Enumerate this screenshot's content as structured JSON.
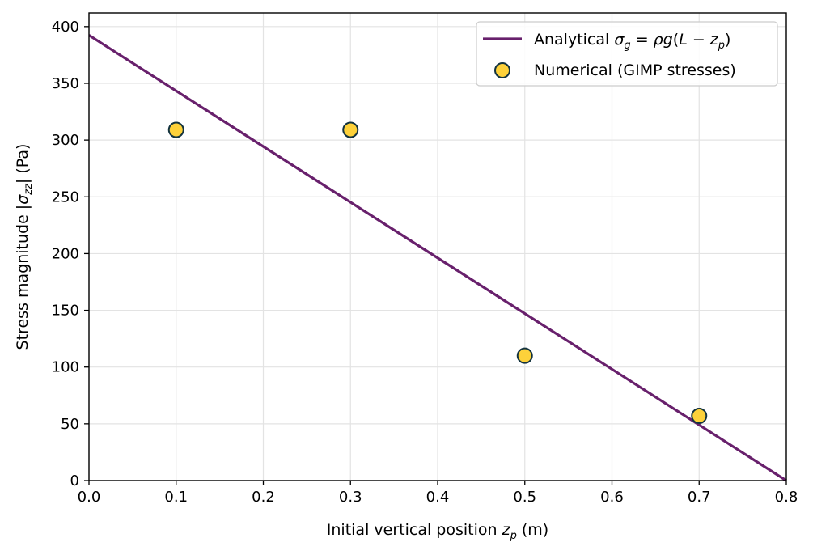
{
  "chart_data": {
    "type": "scatter",
    "xlabel": "Initial vertical position  z_p  (m)",
    "ylabel": "Stress magnitude  |σ_zz|  (Pa)",
    "xlim": [
      0.0,
      0.8
    ],
    "ylim": [
      0,
      412
    ],
    "x_ticks": [
      "0.0",
      "0.1",
      "0.2",
      "0.3",
      "0.4",
      "0.5",
      "0.6",
      "0.7",
      "0.8"
    ],
    "y_ticks": [
      "0",
      "50",
      "100",
      "150",
      "200",
      "250",
      "300",
      "350",
      "400"
    ],
    "grid": true,
    "legend_position": "top-right",
    "series": [
      {
        "name": "Analytical  σ_g = ρg(L − z_p)",
        "kind": "line",
        "color": "#68206c",
        "x": [
          0.0,
          0.8
        ],
        "y": [
          392.4,
          0
        ]
      },
      {
        "name": "Numerical (GIMP stresses)",
        "kind": "scatter",
        "color": "#fdd13a",
        "edge_color": "#13333f",
        "x": [
          0.1,
          0.3,
          0.5,
          0.7
        ],
        "y": [
          309,
          309,
          110,
          57
        ]
      }
    ]
  }
}
